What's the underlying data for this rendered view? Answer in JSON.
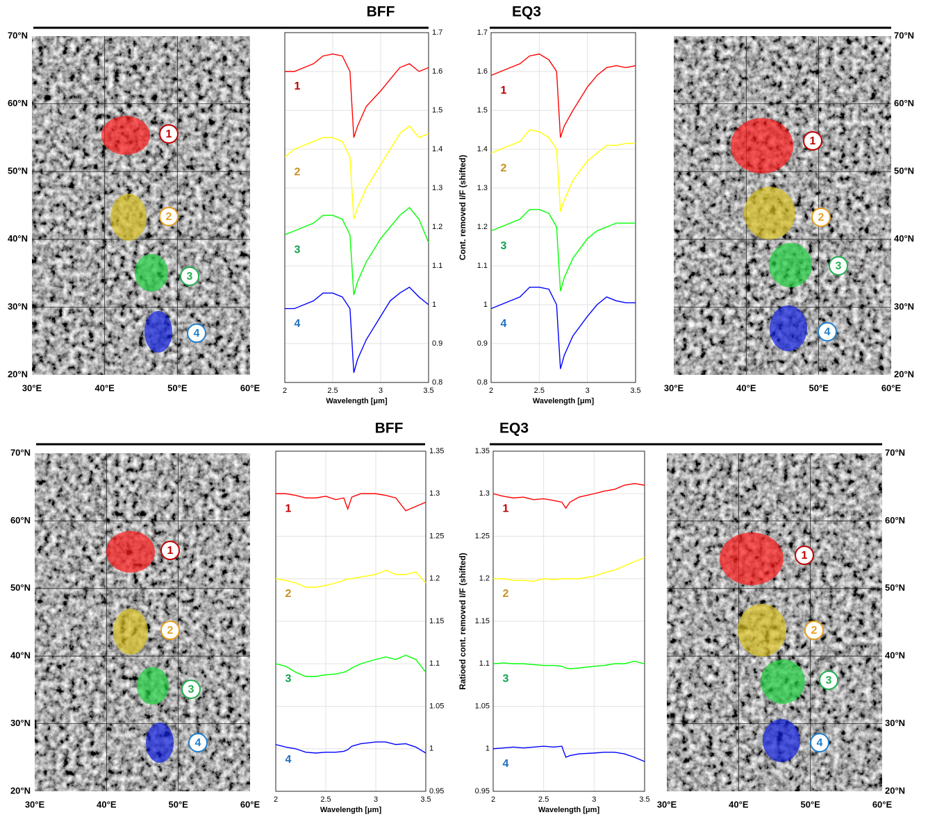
{
  "chart_data": [
    {
      "type": "line",
      "title": "BFF",
      "xlabel": "Wavelength [μm]",
      "x": [
        2.0,
        2.1,
        2.2,
        2.3,
        2.4,
        2.5,
        2.6,
        2.68,
        2.72,
        2.76,
        2.85,
        3.0,
        3.1,
        3.2,
        3.3,
        3.4,
        3.5
      ],
      "xlim": [
        2,
        3.5
      ],
      "xticks": [
        2,
        2.5,
        3,
        3.5
      ],
      "ylim": [
        0.8,
        1.7
      ],
      "yticks": [
        0.8,
        0.9,
        1,
        1.1,
        1.2,
        1.3,
        1.4,
        1.5,
        1.6,
        1.7
      ],
      "grid": true,
      "series": [
        {
          "name": "1",
          "color": "#ff0000",
          "label_color": "#c00000",
          "values": [
            1.6,
            1.6,
            1.61,
            1.62,
            1.64,
            1.645,
            1.64,
            1.6,
            1.43,
            1.46,
            1.51,
            1.55,
            1.58,
            1.61,
            1.62,
            1.6,
            1.61
          ]
        },
        {
          "name": "2",
          "color": "#ffff00",
          "label_color": "#c89020",
          "values": [
            1.38,
            1.4,
            1.41,
            1.42,
            1.43,
            1.43,
            1.42,
            1.38,
            1.22,
            1.25,
            1.3,
            1.36,
            1.4,
            1.44,
            1.46,
            1.43,
            1.44
          ]
        },
        {
          "name": "3",
          "color": "#00ff00",
          "label_color": "#10a050",
          "values": [
            1.18,
            1.19,
            1.2,
            1.21,
            1.23,
            1.23,
            1.22,
            1.18,
            1.025,
            1.06,
            1.11,
            1.17,
            1.2,
            1.23,
            1.25,
            1.22,
            1.16
          ]
        },
        {
          "name": "4",
          "color": "#0000ff",
          "label_color": "#2070c0",
          "values": [
            0.99,
            0.99,
            1.0,
            1.01,
            1.03,
            1.03,
            1.02,
            0.99,
            0.825,
            0.86,
            0.91,
            0.97,
            1.01,
            1.03,
            1.045,
            1.02,
            1.0
          ]
        }
      ]
    },
    {
      "type": "line",
      "title": "EQ3",
      "xlabel": "Wavelength [μm]",
      "ylabel": "Cont. removed I/F (shifted)",
      "x": [
        2.0,
        2.1,
        2.2,
        2.3,
        2.4,
        2.5,
        2.6,
        2.68,
        2.72,
        2.76,
        2.85,
        3.0,
        3.1,
        3.2,
        3.3,
        3.4,
        3.5
      ],
      "xlim": [
        2,
        3.5
      ],
      "xticks": [
        2,
        2.5,
        3,
        3.5
      ],
      "ylim": [
        0.8,
        1.7
      ],
      "yticks": [
        0.8,
        0.9,
        1,
        1.1,
        1.2,
        1.3,
        1.4,
        1.5,
        1.6,
        1.7
      ],
      "grid": true,
      "series": [
        {
          "name": "1",
          "color": "#ff0000",
          "label_color": "#c00000",
          "values": [
            1.59,
            1.6,
            1.61,
            1.62,
            1.64,
            1.645,
            1.63,
            1.6,
            1.43,
            1.46,
            1.5,
            1.56,
            1.59,
            1.61,
            1.615,
            1.61,
            1.615
          ]
        },
        {
          "name": "2",
          "color": "#ffff00",
          "label_color": "#c89020",
          "values": [
            1.39,
            1.4,
            1.41,
            1.42,
            1.45,
            1.445,
            1.43,
            1.4,
            1.24,
            1.27,
            1.32,
            1.37,
            1.39,
            1.41,
            1.41,
            1.415,
            1.415
          ]
        },
        {
          "name": "3",
          "color": "#00ff00",
          "label_color": "#10a050",
          "values": [
            1.19,
            1.2,
            1.21,
            1.22,
            1.245,
            1.245,
            1.235,
            1.2,
            1.035,
            1.07,
            1.12,
            1.17,
            1.19,
            1.2,
            1.21,
            1.21,
            1.21
          ]
        },
        {
          "name": "4",
          "color": "#0000ff",
          "label_color": "#2070c0",
          "values": [
            0.99,
            1.0,
            1.01,
            1.02,
            1.045,
            1.045,
            1.04,
            1.0,
            0.835,
            0.87,
            0.92,
            0.97,
            1.0,
            1.02,
            1.01,
            1.005,
            1.005
          ]
        }
      ]
    },
    {
      "type": "line",
      "title": "BFF",
      "xlabel": "Wavelength [μm]",
      "x": [
        2.0,
        2.1,
        2.2,
        2.3,
        2.4,
        2.5,
        2.6,
        2.68,
        2.72,
        2.76,
        2.85,
        3.0,
        3.1,
        3.2,
        3.3,
        3.4,
        3.5
      ],
      "xlim": [
        2,
        3.5
      ],
      "xticks": [
        2,
        2.5,
        3,
        3.5
      ],
      "ylim": [
        0.95,
        1.35
      ],
      "yticks": [
        0.95,
        1,
        1.05,
        1.1,
        1.15,
        1.2,
        1.25,
        1.3,
        1.35
      ],
      "grid": true,
      "series": [
        {
          "name": "1",
          "color": "#ff0000",
          "label_color": "#c00000",
          "values": [
            1.3,
            1.3,
            1.298,
            1.295,
            1.295,
            1.297,
            1.293,
            1.295,
            1.282,
            1.296,
            1.3,
            1.3,
            1.298,
            1.295,
            1.28,
            1.285,
            1.29
          ]
        },
        {
          "name": "2",
          "color": "#ffff00",
          "label_color": "#c89020",
          "values": [
            1.2,
            1.198,
            1.195,
            1.19,
            1.19,
            1.192,
            1.195,
            1.198,
            1.2,
            1.2,
            1.202,
            1.205,
            1.21,
            1.205,
            1.205,
            1.208,
            1.195
          ]
        },
        {
          "name": "3",
          "color": "#00ff00",
          "label_color": "#10a050",
          "values": [
            1.1,
            1.097,
            1.09,
            1.085,
            1.085,
            1.087,
            1.088,
            1.09,
            1.092,
            1.095,
            1.1,
            1.105,
            1.108,
            1.105,
            1.11,
            1.105,
            1.09
          ]
        },
        {
          "name": "4",
          "color": "#0000ff",
          "label_color": "#2070c0",
          "values": [
            1.005,
            1.002,
            1.0,
            0.996,
            0.995,
            0.996,
            0.996,
            0.997,
            0.999,
            1.003,
            1.006,
            1.008,
            1.008,
            1.005,
            1.006,
            1.002,
            0.995
          ]
        }
      ]
    },
    {
      "type": "line",
      "title": "EQ3",
      "xlabel": "Wavelength [μm]",
      "ylabel": "Ratioed cont. removed I/F (shifted)",
      "x": [
        2.0,
        2.1,
        2.2,
        2.3,
        2.4,
        2.5,
        2.6,
        2.68,
        2.72,
        2.76,
        2.85,
        3.0,
        3.1,
        3.2,
        3.3,
        3.4,
        3.5
      ],
      "xlim": [
        2,
        3.5
      ],
      "xticks": [
        2,
        2.5,
        3,
        3.5
      ],
      "ylim": [
        0.95,
        1.35
      ],
      "yticks": [
        0.95,
        1,
        1.05,
        1.1,
        1.15,
        1.2,
        1.25,
        1.3,
        1.35
      ],
      "grid": true,
      "series": [
        {
          "name": "1",
          "color": "#ff0000",
          "label_color": "#c00000",
          "values": [
            1.3,
            1.297,
            1.295,
            1.296,
            1.293,
            1.294,
            1.292,
            1.29,
            1.283,
            1.29,
            1.296,
            1.3,
            1.303,
            1.305,
            1.31,
            1.312,
            1.31
          ]
        },
        {
          "name": "2",
          "color": "#ffff00",
          "label_color": "#c89020",
          "values": [
            1.2,
            1.2,
            1.198,
            1.198,
            1.197,
            1.2,
            1.199,
            1.2,
            1.2,
            1.2,
            1.2,
            1.203,
            1.207,
            1.21,
            1.215,
            1.22,
            1.225
          ]
        },
        {
          "name": "3",
          "color": "#00ff00",
          "label_color": "#10a050",
          "values": [
            1.1,
            1.101,
            1.1,
            1.1,
            1.099,
            1.098,
            1.098,
            1.097,
            1.095,
            1.094,
            1.095,
            1.097,
            1.098,
            1.1,
            1.1,
            1.103,
            1.1
          ]
        },
        {
          "name": "4",
          "color": "#0000ff",
          "label_color": "#2070c0",
          "values": [
            1.0,
            1.001,
            1.002,
            1.001,
            1.002,
            1.003,
            1.002,
            1.003,
            0.99,
            0.992,
            0.994,
            0.995,
            0.996,
            0.996,
            0.994,
            0.99,
            0.985
          ]
        }
      ]
    }
  ],
  "maps": [
    {
      "lat_labels": [
        "70°N",
        "60°N",
        "50°N",
        "40°N",
        "30°N",
        "20°N"
      ],
      "lon_labels": [
        "30°E",
        "40°E",
        "50°E",
        "60°E"
      ],
      "regions": [
        {
          "label": "1",
          "fill": "#ff1a1a",
          "badge": "#c00000"
        },
        {
          "label": "2",
          "fill": "#d8c020",
          "badge": "#e8a020"
        },
        {
          "label": "3",
          "fill": "#20d040",
          "badge": "#20b050"
        },
        {
          "label": "4",
          "fill": "#1020e0",
          "badge": "#2080d0"
        }
      ]
    },
    {
      "lat_labels": [
        "70°N",
        "60°N",
        "50°N",
        "40°N",
        "30°N",
        "20°N"
      ],
      "lon_labels": [
        "30°E",
        "40°E",
        "50°E",
        "60°E"
      ],
      "regions": [
        {
          "label": "1",
          "fill": "#ff1a1a",
          "badge": "#c00000"
        },
        {
          "label": "2",
          "fill": "#d8c020",
          "badge": "#e8a020"
        },
        {
          "label": "3",
          "fill": "#20d040",
          "badge": "#20b050"
        },
        {
          "label": "4",
          "fill": "#1020e0",
          "badge": "#2080d0"
        }
      ]
    },
    {
      "lat_labels": [
        "70°N",
        "60°N",
        "50°N",
        "40°N",
        "30°N",
        "20°N"
      ],
      "lon_labels": [
        "30°E",
        "40°E",
        "50°E",
        "60°E"
      ],
      "regions": [
        {
          "label": "1",
          "fill": "#ff1a1a",
          "badge": "#c00000"
        },
        {
          "label": "2",
          "fill": "#d8c020",
          "badge": "#e8a020"
        },
        {
          "label": "3",
          "fill": "#20d040",
          "badge": "#20b050"
        },
        {
          "label": "4",
          "fill": "#1020e0",
          "badge": "#2080d0"
        }
      ]
    },
    {
      "lat_labels": [
        "70°N",
        "60°N",
        "50°N",
        "40°N",
        "30°N",
        "20°N"
      ],
      "lon_labels": [
        "30°E",
        "40°E",
        "50°E",
        "60°E"
      ],
      "regions": [
        {
          "label": "1",
          "fill": "#ff1a1a",
          "badge": "#c00000"
        },
        {
          "label": "2",
          "fill": "#d8c020",
          "badge": "#e8a020"
        },
        {
          "label": "3",
          "fill": "#20d040",
          "badge": "#20b050"
        },
        {
          "label": "4",
          "fill": "#1020e0",
          "badge": "#2080d0"
        }
      ]
    }
  ]
}
